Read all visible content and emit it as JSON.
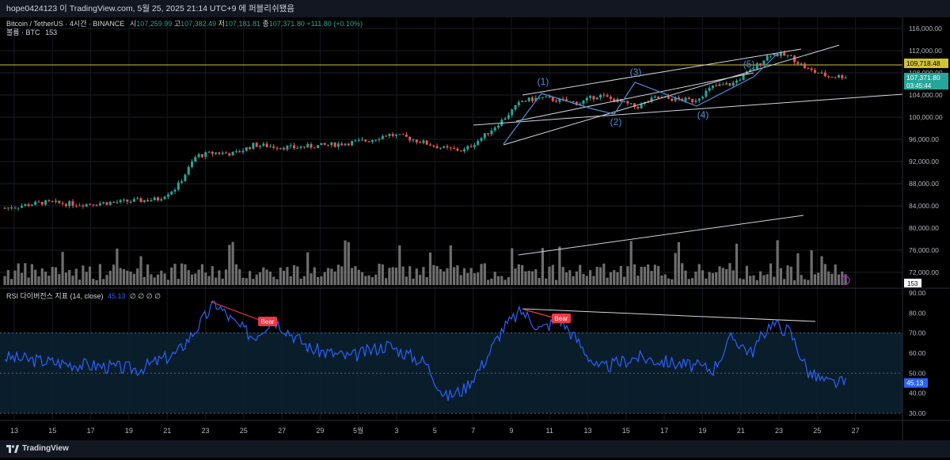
{
  "header": {
    "text": "hope0424123 이 TradingView.com, 5월 25, 2025 21:14 UTC+9 에 퍼블리쉬됐음"
  },
  "legend": {
    "symbol": "Bitcoin / TetherUS · 4시간 · BINANCE",
    "o_label": "시",
    "o": "107,259.99",
    "h_label": "고",
    "h": "107,382.49",
    "l_label": "저",
    "l": "107,181.81",
    "c_label": "종",
    "c": "107,371.80",
    "change": "+111.80 (+0.10%)",
    "volume_label": "볼륨 · BTC",
    "volume_value": "153",
    "rsi_label": "RSI 다이버전스 지표 (14, close)",
    "rsi_value": "45.13",
    "rsi_extra": "∅ ∅ ∅ ∅"
  },
  "price_axis": {
    "ticks": [
      "116,000.00",
      "112,000.00",
      "108,000.00",
      "104,000.00",
      "100,000.00",
      "96,000.00",
      "92,000.00",
      "88,000.00",
      "84,000.00",
      "80,000.00",
      "76,000.00",
      "72,000.00"
    ],
    "hline_label": "109,718.48",
    "last_price_label": "107,371.80",
    "countdown": "03:45:44",
    "volume_badge": "153"
  },
  "rsi_axis": {
    "ticks": [
      "90.00",
      "80.00",
      "70.00",
      "60.00",
      "50.00",
      "40.00",
      "30.00"
    ],
    "last_label": "45.13"
  },
  "time_axis": {
    "ticks": [
      "13",
      "15",
      "17",
      "19",
      "21",
      "23",
      "25",
      "27",
      "29",
      "5월",
      "3",
      "5",
      "7",
      "9",
      "11",
      "13",
      "15",
      "17",
      "19",
      "21",
      "23",
      "25",
      "27"
    ]
  },
  "annotations": {
    "waves": [
      "(1)",
      "(2)",
      "(3)",
      "(4)",
      "(5)"
    ],
    "bear_labels": [
      "Bear",
      "Bear"
    ]
  },
  "footer": {
    "brand": "TradingView"
  },
  "colors": {
    "up": "#26a69a",
    "down": "#ef5350",
    "wave": "#4a90d9",
    "rsi": "#2962ff",
    "hline": "#d4c233",
    "bear": "#f23645"
  },
  "chart_data": {
    "type": "candlestick",
    "interval": "4h",
    "x_start": "2025-04-12",
    "x_end": "2025-05-26",
    "ylim": [
      70000,
      118000
    ],
    "horizontal_line": 109718.48,
    "close_path": [
      {
        "date": "04-12",
        "close": 83600
      },
      {
        "date": "04-14",
        "close": 84600
      },
      {
        "date": "04-16",
        "close": 84300
      },
      {
        "date": "04-18",
        "close": 84700
      },
      {
        "date": "04-20",
        "close": 85200
      },
      {
        "date": "04-21",
        "close": 87400
      },
      {
        "date": "04-22",
        "close": 93000
      },
      {
        "date": "04-23",
        "close": 93600
      },
      {
        "date": "04-24",
        "close": 93400
      },
      {
        "date": "04-25",
        "close": 95000
      },
      {
        "date": "04-27",
        "close": 94500
      },
      {
        "date": "04-29",
        "close": 95000
      },
      {
        "date": "05-01",
        "close": 95800
      },
      {
        "date": "05-02",
        "close": 96900
      },
      {
        "date": "05-03",
        "close": 96300
      },
      {
        "date": "05-05",
        "close": 94300
      },
      {
        "date": "05-06",
        "close": 94000
      },
      {
        "date": "05-07",
        "close": 96500
      },
      {
        "date": "05-08",
        "close": 99500
      },
      {
        "date": "05-09",
        "close": 102900
      },
      {
        "date": "05-10",
        "close": 103500
      },
      {
        "date": "05-12",
        "close": 102500
      },
      {
        "date": "05-13",
        "close": 104000
      },
      {
        "date": "05-15",
        "close": 101800
      },
      {
        "date": "05-16",
        "close": 103500
      },
      {
        "date": "05-18",
        "close": 103000
      },
      {
        "date": "05-19",
        "close": 105500
      },
      {
        "date": "05-20",
        "close": 106000
      },
      {
        "date": "05-21",
        "close": 108500
      },
      {
        "date": "05-22",
        "close": 111500
      },
      {
        "date": "05-23",
        "close": 111000
      },
      {
        "date": "05-24",
        "close": 108500
      },
      {
        "date": "05-25",
        "close": 107371.8
      }
    ],
    "rsi_series": [
      {
        "date": "04-12",
        "rsi": 58
      },
      {
        "date": "04-15",
        "rsi": 55
      },
      {
        "date": "04-19",
        "rsi": 52
      },
      {
        "date": "04-21",
        "rsi": 60
      },
      {
        "date": "04-22",
        "rsi": 72
      },
      {
        "date": "04-23",
        "rsi": 85
      },
      {
        "date": "04-24",
        "rsi": 75
      },
      {
        "date": "04-25",
        "rsi": 68
      },
      {
        "date": "04-26",
        "rsi": 77
      },
      {
        "date": "04-28",
        "rsi": 62
      },
      {
        "date": "04-30",
        "rsi": 58
      },
      {
        "date": "05-02",
        "rsi": 64
      },
      {
        "date": "05-04",
        "rsi": 55
      },
      {
        "date": "05-05",
        "rsi": 38
      },
      {
        "date": "05-06",
        "rsi": 42
      },
      {
        "date": "05-07",
        "rsi": 55
      },
      {
        "date": "05-08",
        "rsi": 72
      },
      {
        "date": "05-09",
        "rsi": 81
      },
      {
        "date": "05-10",
        "rsi": 72
      },
      {
        "date": "05-11",
        "rsi": 77
      },
      {
        "date": "05-12",
        "rsi": 65
      },
      {
        "date": "05-13",
        "rsi": 52
      },
      {
        "date": "05-15",
        "rsi": 58
      },
      {
        "date": "05-17",
        "rsi": 55
      },
      {
        "date": "05-19",
        "rsi": 52
      },
      {
        "date": "05-20",
        "rsi": 68
      },
      {
        "date": "05-21",
        "rsi": 60
      },
      {
        "date": "05-22",
        "rsi": 75
      },
      {
        "date": "05-23",
        "rsi": 71
      },
      {
        "date": "05-24",
        "rsi": 50
      },
      {
        "date": "05-25",
        "rsi": 45.13
      }
    ]
  }
}
